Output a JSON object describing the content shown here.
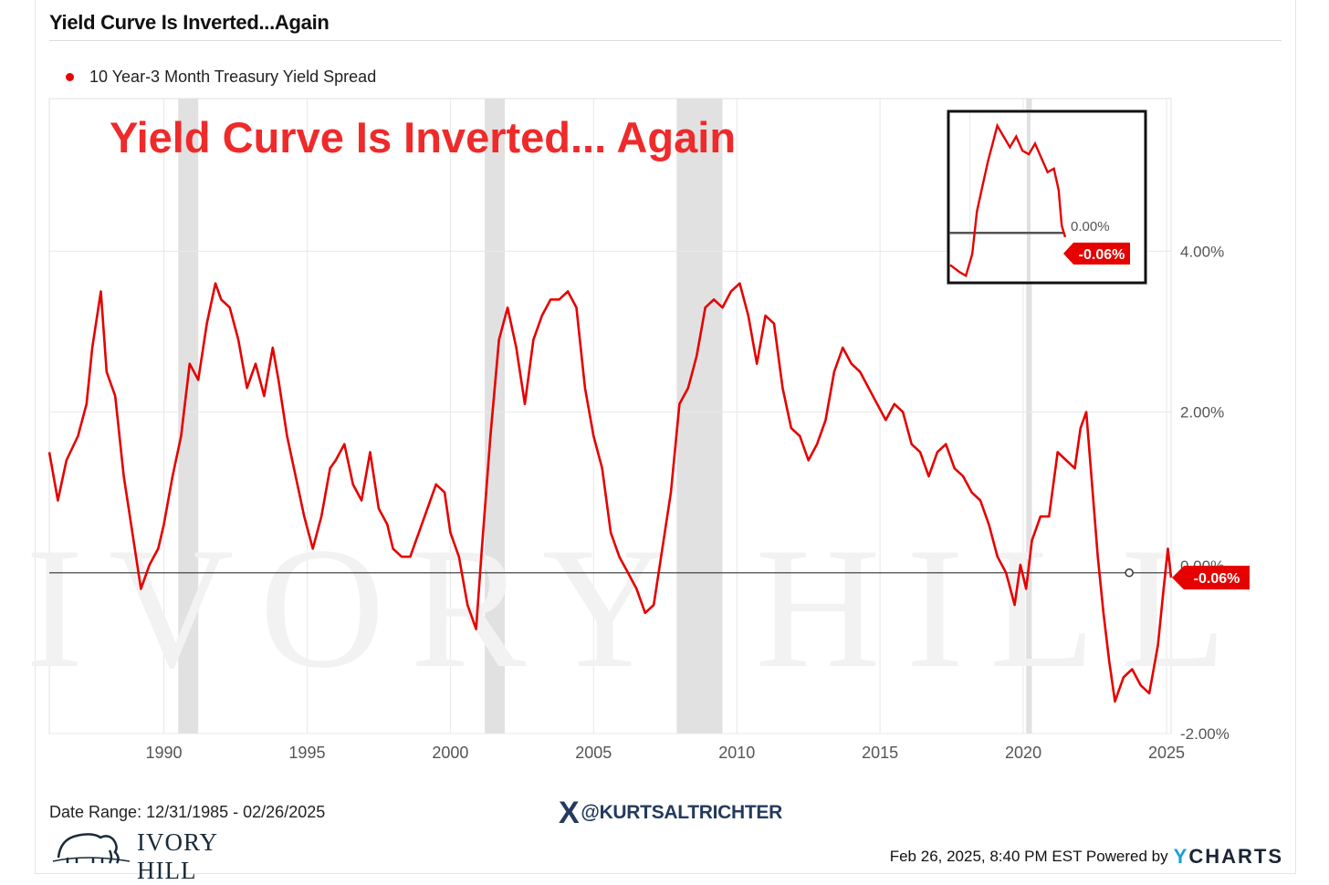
{
  "header": {
    "title": "Yield Curve Is Inverted...Again",
    "legend_label": "10 Year-3 Month Treasury Yield Spread"
  },
  "footer": {
    "date_range": "Date Range: 12/31/1985 - 02/26/2025",
    "brand_name": "IVORY HILL",
    "handle": "@KURTSALTRICHTER",
    "timestamp": "Feb 26, 2025, 8:40 PM EST Powered by",
    "powered_by": "YCHARTS"
  },
  "colors": {
    "series": "#e60000",
    "recession": "#e1e1e1",
    "grid": "#e8e8e8",
    "zero_line": "#333333",
    "overlay_text": "#ee2a2a"
  },
  "chart_data": {
    "type": "line",
    "title": "Yield Curve Is Inverted... Again",
    "overlay_title": "Yield Curve Is Inverted... Again",
    "xlabel": "",
    "ylabel": "",
    "xlim": [
      1986.0,
      2025.16
    ],
    "ylim": [
      -2.0,
      5.9
    ],
    "x_ticks": [
      1990,
      1995,
      2000,
      2005,
      2010,
      2015,
      2020,
      2025
    ],
    "x_tick_labels": [
      "1990",
      "1995",
      "2000",
      "2005",
      "2010",
      "2015",
      "2020",
      "2025"
    ],
    "y_ticks": [
      -2.0,
      0.0,
      2.0,
      4.0
    ],
    "y_tick_labels": [
      "-2.00%",
      "0.00%",
      "2.00%",
      "4.00%"
    ],
    "grid": true,
    "legend_position": "top-left",
    "recessions": [
      [
        1990.5,
        1991.2
      ],
      [
        2001.2,
        2001.9
      ],
      [
        2007.9,
        2009.5
      ],
      [
        2020.1,
        2020.3
      ]
    ],
    "series": [
      {
        "name": "10 Year-3 Month Treasury Yield Spread",
        "x": [
          1986.0,
          1986.3,
          1986.6,
          1987.0,
          1987.3,
          1987.5,
          1987.8,
          1988.0,
          1988.3,
          1988.6,
          1988.9,
          1989.2,
          1989.5,
          1989.8,
          1990.0,
          1990.3,
          1990.6,
          1990.9,
          1991.2,
          1991.5,
          1991.8,
          1992.0,
          1992.3,
          1992.6,
          1992.9,
          1993.2,
          1993.5,
          1993.8,
          1994.0,
          1994.3,
          1994.6,
          1994.9,
          1995.2,
          1995.5,
          1995.8,
          1996.0,
          1996.3,
          1996.6,
          1996.9,
          1997.2,
          1997.5,
          1997.8,
          1998.0,
          1998.3,
          1998.6,
          1998.9,
          1999.2,
          1999.5,
          1999.8,
          2000.0,
          2000.3,
          2000.6,
          2000.9,
          2001.1,
          2001.4,
          2001.7,
          2002.0,
          2002.3,
          2002.6,
          2002.9,
          2003.2,
          2003.5,
          2003.8,
          2004.1,
          2004.4,
          2004.7,
          2005.0,
          2005.3,
          2005.6,
          2005.9,
          2006.2,
          2006.5,
          2006.8,
          2007.1,
          2007.4,
          2007.7,
          2008.0,
          2008.3,
          2008.6,
          2008.9,
          2009.2,
          2009.5,
          2009.8,
          2010.1,
          2010.4,
          2010.7,
          2011.0,
          2011.3,
          2011.6,
          2011.9,
          2012.2,
          2012.5,
          2012.8,
          2013.1,
          2013.4,
          2013.7,
          2014.0,
          2014.3,
          2014.6,
          2014.9,
          2015.2,
          2015.5,
          2015.8,
          2016.1,
          2016.4,
          2016.7,
          2017.0,
          2017.3,
          2017.6,
          2017.9,
          2018.2,
          2018.5,
          2018.8,
          2019.1,
          2019.4,
          2019.7,
          2019.9,
          2020.1,
          2020.3,
          2020.6,
          2020.9,
          2021.2,
          2021.5,
          2021.8,
          2022.0,
          2022.2,
          2022.4,
          2022.6,
          2022.8,
          2023.0,
          2023.2,
          2023.5,
          2023.8,
          2024.1,
          2024.4,
          2024.7,
          2024.9,
          2025.05,
          2025.16
        ],
        "y": [
          1.5,
          0.9,
          1.4,
          1.7,
          2.1,
          2.8,
          3.5,
          2.5,
          2.2,
          1.2,
          0.5,
          -0.2,
          0.1,
          0.3,
          0.6,
          1.2,
          1.7,
          2.6,
          2.4,
          3.1,
          3.6,
          3.4,
          3.3,
          2.9,
          2.3,
          2.6,
          2.2,
          2.8,
          2.4,
          1.7,
          1.2,
          0.7,
          0.3,
          0.7,
          1.3,
          1.4,
          1.6,
          1.1,
          0.9,
          1.5,
          0.8,
          0.6,
          0.3,
          0.2,
          0.2,
          0.5,
          0.8,
          1.1,
          1.0,
          0.5,
          0.2,
          -0.4,
          -0.7,
          0.3,
          1.7,
          2.9,
          3.3,
          2.8,
          2.1,
          2.9,
          3.2,
          3.4,
          3.4,
          3.5,
          3.3,
          2.3,
          1.7,
          1.3,
          0.5,
          0.2,
          0.0,
          -0.2,
          -0.5,
          -0.4,
          0.3,
          1.0,
          2.1,
          2.3,
          2.7,
          3.3,
          3.4,
          3.3,
          3.5,
          3.6,
          3.2,
          2.6,
          3.2,
          3.1,
          2.3,
          1.8,
          1.7,
          1.4,
          1.6,
          1.9,
          2.5,
          2.8,
          2.6,
          2.5,
          2.3,
          2.1,
          1.9,
          2.1,
          2.0,
          1.6,
          1.5,
          1.2,
          1.5,
          1.6,
          1.3,
          1.2,
          1.0,
          0.9,
          0.6,
          0.2,
          0.0,
          -0.4,
          0.1,
          -0.2,
          0.4,
          0.7,
          0.7,
          1.5,
          1.4,
          1.3,
          1.8,
          2.0,
          1.1,
          0.2,
          -0.5,
          -1.1,
          -1.6,
          -1.3,
          -1.2,
          -1.4,
          -1.5,
          -0.9,
          -0.2,
          0.3,
          -0.06
        ],
        "end_label": "-0.06%"
      }
    ],
    "inset": {
      "x_range": [
        2021.5,
        2025.16
      ],
      "y_range": [
        -0.7,
        1.6
      ],
      "zero_label": "0.00%",
      "end_label": "-0.06%",
      "x": [
        2021.5,
        2021.8,
        2022.0,
        2022.2,
        2022.35,
        2022.5,
        2022.7,
        2022.85,
        2023.0,
        2023.2,
        2023.4,
        2023.6,
        2023.8,
        2024.0,
        2024.2,
        2024.4,
        2024.6,
        2024.8,
        2024.95,
        2025.05,
        2025.16
      ],
      "y": [
        -0.45,
        -0.55,
        -0.6,
        -0.3,
        0.3,
        0.6,
        1.0,
        1.25,
        1.5,
        1.35,
        1.2,
        1.35,
        1.15,
        1.1,
        1.25,
        1.05,
        0.85,
        0.9,
        0.6,
        0.1,
        -0.06
      ]
    }
  }
}
